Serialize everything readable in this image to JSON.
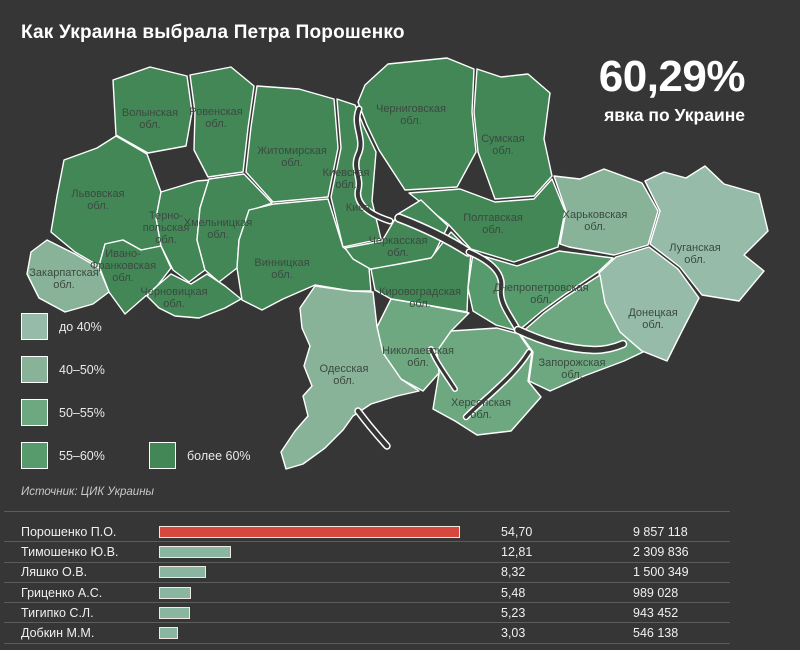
{
  "title": "Как Украина выбрала Петра Порошенко",
  "turnout": {
    "value": "60,29%",
    "label": "явка по Украине"
  },
  "legend": [
    {
      "label": "до 40%",
      "color": "#96bba9"
    },
    {
      "label": "40–50%",
      "color": "#88b399"
    },
    {
      "label": "50–55%",
      "color": "#6ea881"
    },
    {
      "label": "55–60%",
      "color": "#579a6b"
    },
    {
      "label": "более 60%",
      "color": "#438757"
    }
  ],
  "source": "Источник: ЦИК Украины",
  "results": [
    {
      "name": "Порошенко П.О.",
      "percent_label": "54,70",
      "votes": "9 857 118",
      "value": 54.7,
      "color": "#d6483d"
    },
    {
      "name": "Тимошенко Ю.В.",
      "percent_label": "12,81",
      "votes": "2 309 836",
      "value": 12.81,
      "color": "#8ab5a1"
    },
    {
      "name": "Ляшко О.В.",
      "percent_label": "8,32",
      "votes": "1 500 349",
      "value": 8.32,
      "color": "#8ab5a1"
    },
    {
      "name": "Гриценко А.С.",
      "percent_label": "5,48",
      "votes": "989 028",
      "value": 5.48,
      "color": "#8ab5a1"
    },
    {
      "name": "Тигипко С.Л.",
      "percent_label": "5,23",
      "votes": "943 452",
      "value": 5.23,
      "color": "#8ab5a1"
    },
    {
      "name": "Добкин М.М.",
      "percent_label": "3,03",
      "votes": "546 138",
      "value": 3.03,
      "color": "#8ab5a1"
    }
  ],
  "chart_data": [
    {
      "type": "heatmap",
      "subtype": "choropleth-map",
      "title": "Как Украина выбрала Петра Порошенко",
      "metric": "явка по Украине",
      "total_value": "60,29%",
      "bins": [
        "до 40%",
        "40–50%",
        "50–55%",
        "55–60%",
        "более 60%"
      ],
      "regions": [
        {
          "id": "volyn",
          "lines": [
            "Волынская",
            "обл."
          ],
          "bin": 4
        },
        {
          "id": "rivne",
          "lines": [
            "Ровенская",
            "обл."
          ],
          "bin": 4
        },
        {
          "id": "zhytomyr",
          "lines": [
            "Житомирская",
            "обл."
          ],
          "bin": 4
        },
        {
          "id": "lviv",
          "lines": [
            "Львовская",
            "обл."
          ],
          "bin": 4
        },
        {
          "id": "ternopil",
          "lines": [
            "Терно-",
            "польская",
            "обл."
          ],
          "bin": 4
        },
        {
          "id": "khmelnytskyi",
          "lines": [
            "Хмельницкая",
            "обл."
          ],
          "bin": 4
        },
        {
          "id": "ivano-frankivsk",
          "lines": [
            "Ивано-",
            "Франковская",
            "обл."
          ],
          "bin": 4
        },
        {
          "id": "zakarpattia",
          "lines": [
            "Закарпатская",
            "обл."
          ],
          "bin": 1
        },
        {
          "id": "chernivtsi",
          "lines": [
            "Черновицкая",
            "обл."
          ],
          "bin": 4
        },
        {
          "id": "vinnytsia",
          "lines": [
            "Винницкая",
            "обл."
          ],
          "bin": 4
        },
        {
          "id": "kyiv-oblast",
          "lines": [
            "Киевская",
            "обл."
          ],
          "bin": 4
        },
        {
          "id": "kyiv-city",
          "lines": [
            "Киев"
          ],
          "bin": 4
        },
        {
          "id": "chernihiv",
          "lines": [
            "Черниговская",
            "обл."
          ],
          "bin": 4
        },
        {
          "id": "sumy",
          "lines": [
            "Сумская",
            "обл."
          ],
          "bin": 4
        },
        {
          "id": "poltava",
          "lines": [
            "Полтавская",
            "обл."
          ],
          "bin": 4
        },
        {
          "id": "cherkasy",
          "lines": [
            "Черкасская",
            "обл."
          ],
          "bin": 4
        },
        {
          "id": "kirovohrad",
          "lines": [
            "Кировоградская",
            "обл."
          ],
          "bin": 4
        },
        {
          "id": "kharkiv",
          "lines": [
            "Харьковская",
            "обл."
          ],
          "bin": 1
        },
        {
          "id": "luhansk",
          "lines": [
            "Луганская",
            "обл."
          ],
          "bin": 0
        },
        {
          "id": "donetsk",
          "lines": [
            "Донецкая",
            "обл."
          ],
          "bin": 0
        },
        {
          "id": "dnipropetrovsk",
          "lines": [
            "Днепропетровская",
            "обл."
          ],
          "bin": 3
        },
        {
          "id": "zaporizhzhia",
          "lines": [
            "Запорожская",
            "обл."
          ],
          "bin": 2
        },
        {
          "id": "kherson",
          "lines": [
            "Херсонская",
            "обл."
          ],
          "bin": 2
        },
        {
          "id": "mykolaiv",
          "lines": [
            "Николаевская",
            "обл."
          ],
          "bin": 2
        },
        {
          "id": "odesa",
          "lines": [
            "Одесская",
            "обл."
          ],
          "bin": 1
        }
      ]
    },
    {
      "type": "bar",
      "orientation": "horizontal",
      "categories": [
        "Порошенко П.О.",
        "Тимошенко Ю.В.",
        "Ляшко О.В.",
        "Гриценко А.С.",
        "Тигипко С.Л.",
        "Добкин М.М."
      ],
      "values": [
        54.7,
        12.81,
        8.32,
        5.48,
        5.23,
        3.03
      ],
      "votes": [
        9857118,
        2309836,
        1500349,
        989028,
        943452,
        546138
      ],
      "source": "Источник: ЦИК Украины"
    }
  ]
}
